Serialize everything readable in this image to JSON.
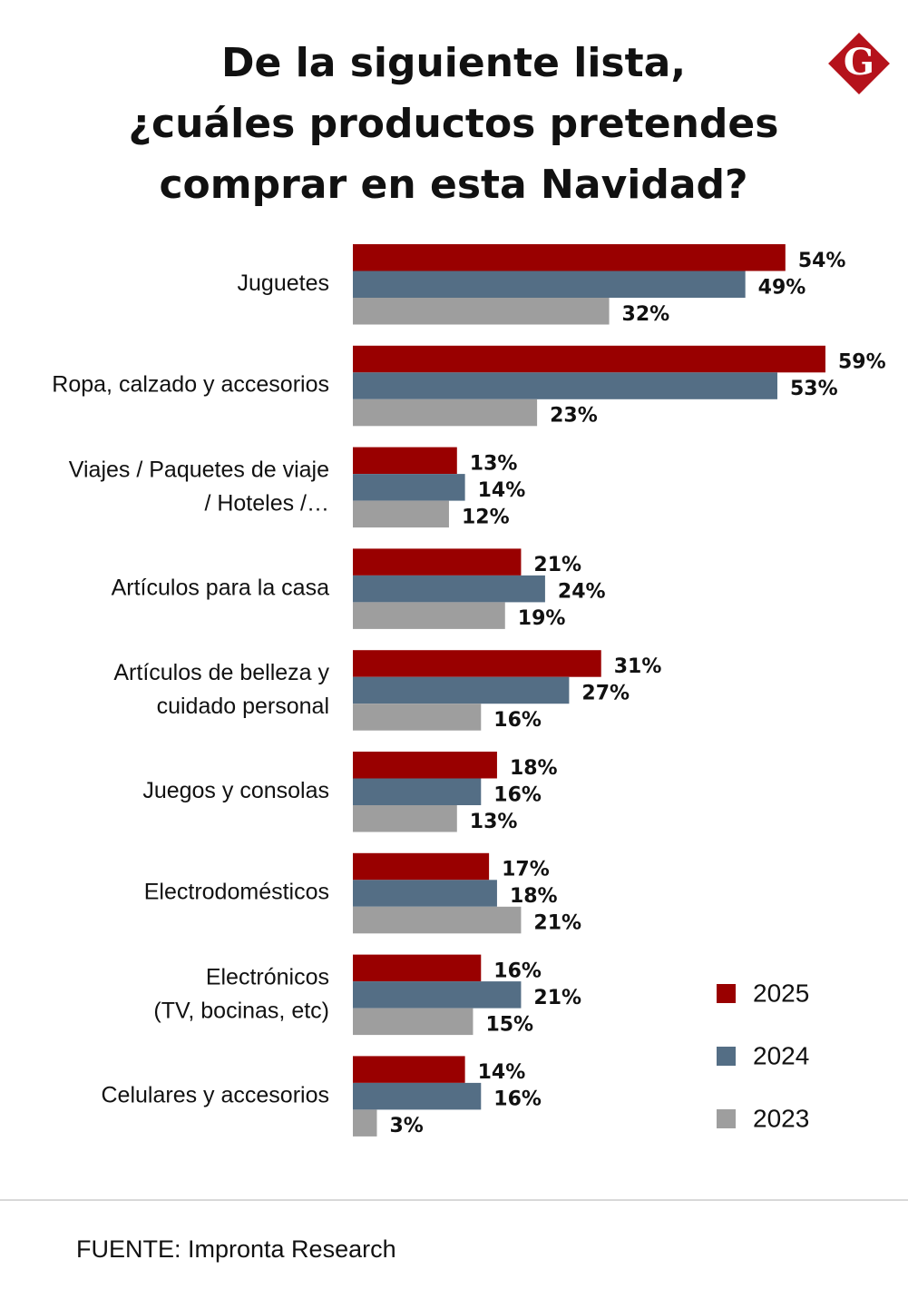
{
  "chart_data": {
    "type": "bar",
    "orientation": "horizontal",
    "title": "De la siguiente lista,\n¿cuáles productos pretendes\ncomprar en esta Navidad?",
    "categories": [
      "Juguetes",
      "Ropa, calzado y accesorios",
      "Viajes / Paquetes de viaje\n/ Hoteles /…",
      "Artículos para la casa",
      "Artículos de belleza y\ncuidado personal",
      "Juegos y consolas",
      "Electrodomésticos",
      "Electrónicos\n(TV, bocinas, etc)",
      "Celulares y accesorios"
    ],
    "series": [
      {
        "name": "2025",
        "color": "#990000",
        "values": [
          54,
          59,
          13,
          21,
          31,
          18,
          17,
          16,
          14
        ],
        "value_labels": [
          "54%",
          "59%",
          "13%",
          "21%",
          "31%",
          "18%",
          "17%",
          "16%",
          "14%"
        ]
      },
      {
        "name": "2024",
        "color": "#546e85",
        "values": [
          49,
          53,
          14,
          24,
          27,
          16,
          18,
          21,
          16
        ],
        "value_labels": [
          "49%",
          "53%",
          "14%",
          "24%",
          "27%",
          "16%",
          "18%",
          "21%",
          "16%"
        ]
      },
      {
        "name": "2023",
        "color": "#9e9e9e",
        "values": [
          32,
          23,
          12,
          19,
          16,
          13,
          21,
          15,
          3
        ],
        "value_labels": [
          "32%",
          "23%",
          "12%",
          "19%",
          "16%",
          "13%",
          "21%",
          "15%",
          "3%"
        ]
      }
    ],
    "legend_position": "lower right",
    "source": "FUENTE: Impronta Research"
  },
  "logo_text": "G"
}
